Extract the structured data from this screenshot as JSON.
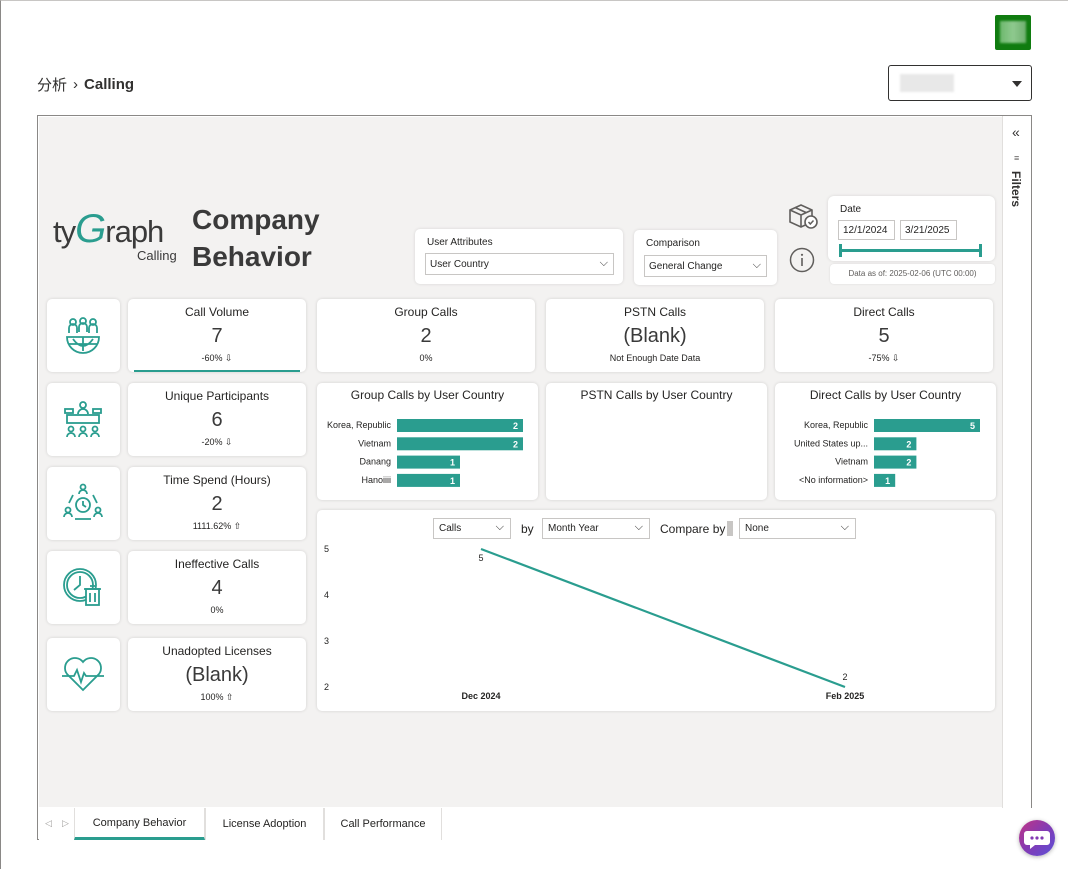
{
  "breadcrumb": {
    "parent": "分析",
    "separator": "›",
    "current": "Calling"
  },
  "logo": {
    "ty": "ty",
    "g": "G",
    "raph": "raph",
    "sub": "Calling"
  },
  "page_title": "Company Behavior",
  "slicers": {
    "user_attributes": {
      "label": "User Attributes",
      "value": "User Country"
    },
    "comparison": {
      "label": "Comparison",
      "value": "General Change"
    }
  },
  "date": {
    "label": "Date",
    "start": "12/1/2024",
    "end": "3/21/2025",
    "as_of": "Data as of: 2025-02-06 (UTC 00:00)"
  },
  "kpis": {
    "call_volume": {
      "title": "Call Volume",
      "value": "7",
      "change": "-60% ⇩"
    },
    "unique_participants": {
      "title": "Unique Participants",
      "value": "6",
      "change": "-20% ⇩"
    },
    "time_spend": {
      "title": "Time Spend (Hours)",
      "value": "2",
      "change": "1111.62% ⇧"
    },
    "ineffective_calls": {
      "title": "Ineffective Calls",
      "value": "4",
      "change": "0%"
    },
    "unadopted_licenses": {
      "title": "Unadopted Licenses",
      "value": "(Blank)",
      "change": "100% ⇧"
    },
    "group_calls": {
      "title": "Group Calls",
      "value": "2",
      "change": "0%"
    },
    "pstn_calls": {
      "title": "PSTN Calls",
      "value": "(Blank)",
      "change": "Not Enough Date Data"
    },
    "direct_calls": {
      "title": "Direct Calls",
      "value": "5",
      "change": "-75% ⇩"
    }
  },
  "line_controls": {
    "metric": "Calls",
    "by_label": "by",
    "period": "Month Year",
    "compare_label": "Compare by",
    "compare": "None"
  },
  "page_tabs": [
    "Company Behavior",
    "License Adoption",
    "Call Performance"
  ],
  "filters": {
    "label": "Filters",
    "collapse": "«",
    "funnel": "≡"
  },
  "tab_nav": {
    "prev": "◁",
    "next": "▷"
  },
  "colors": {
    "accent": "#2a9d8f"
  },
  "chart_data": [
    {
      "type": "bar",
      "title": "Group Calls by User Country",
      "categories": [
        "Korea, Republic",
        "Vietnam",
        "Danang",
        "Hanoiiii"
      ],
      "values": [
        2,
        2,
        1,
        1
      ],
      "xlim": [
        0,
        2
      ]
    },
    {
      "type": "bar",
      "title": "PSTN Calls by User Country",
      "categories": [],
      "values": []
    },
    {
      "type": "bar",
      "title": "Direct Calls by User Country",
      "categories": [
        "Korea, Republic",
        "United States up...",
        "Vietnam",
        "<No information>"
      ],
      "values": [
        5,
        2,
        2,
        1
      ],
      "xlim": [
        0,
        5
      ]
    },
    {
      "type": "line",
      "title": "Calls by Month Year",
      "x": [
        "Dec 2024",
        "Feb 2025"
      ],
      "y": [
        5,
        2
      ],
      "ylim": [
        2,
        5
      ],
      "yticks": [
        5,
        4,
        3,
        2
      ],
      "xlabel": "",
      "ylabel": ""
    }
  ]
}
